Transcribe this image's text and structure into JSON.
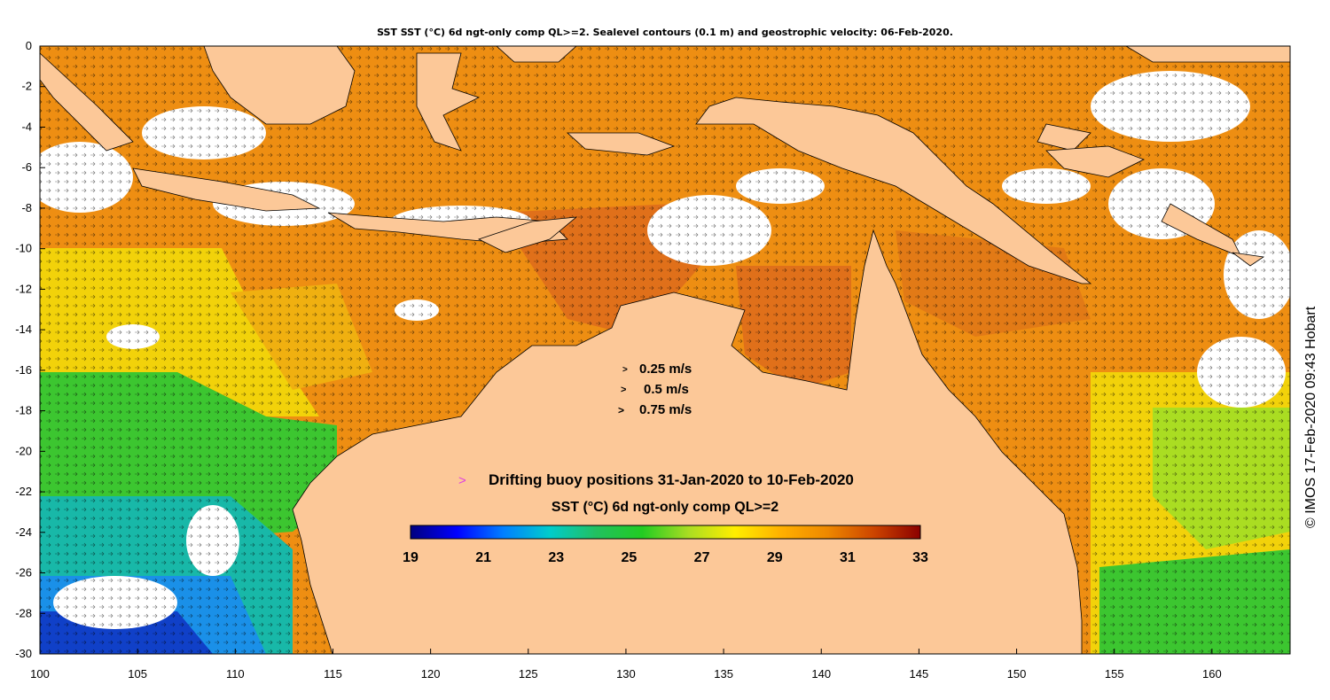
{
  "title": "SST SST (°C) 6d ngt-only comp QL>=2. Sealevel contours (0.1 m) and geostrophic velocity: 06-Feb-2020.",
  "copyright": "© IMOS 17-Feb-2020 09:43 Hobart",
  "axes": {
    "x_ticks": [
      "100",
      "105",
      "110",
      "115",
      "120",
      "125",
      "130",
      "135",
      "140",
      "145",
      "150",
      "155",
      "160"
    ],
    "y_ticks": [
      "0",
      "-2",
      "-4",
      "-6",
      "-8",
      "-10",
      "-12",
      "-14",
      "-16",
      "-18",
      "-20",
      "-22",
      "-24",
      "-26",
      "-28",
      "-30"
    ],
    "lon_range": [
      100,
      164
    ],
    "lat_range": [
      -30,
      0
    ]
  },
  "velocity_legend": [
    {
      "glyph": ">",
      "label": "0.25 m/s"
    },
    {
      "glyph": ">",
      "label": "0.5 m/s"
    },
    {
      "glyph": ">",
      "label": "0.75 m/s"
    }
  ],
  "buoy_legend": {
    "glyph": ">",
    "label": "Drifting buoy positions 31-Jan-2020 to 10-Feb-2020",
    "color": "#e040e0"
  },
  "colorbar": {
    "title": "SST (°C) 6d ngt-only comp QL>=2",
    "ticks": [
      "19",
      "21",
      "23",
      "25",
      "27",
      "29",
      "31",
      "33"
    ],
    "range": [
      19,
      33
    ],
    "colors": [
      "#00007f",
      "#0000ff",
      "#007fff",
      "#00cccc",
      "#22c060",
      "#22cc22",
      "#aadd22",
      "#ffee00",
      "#ffb000",
      "#ee8800",
      "#cc4400",
      "#8b0000"
    ]
  },
  "colors": {
    "land": "#fcc898",
    "warm": "#ee8e12",
    "hot": "#e0701a",
    "yellow": "#f2d20a",
    "green": "#3cc630",
    "cyan": "#10b8c0",
    "blue": "#1050d8",
    "cloud": "#ffffff"
  }
}
